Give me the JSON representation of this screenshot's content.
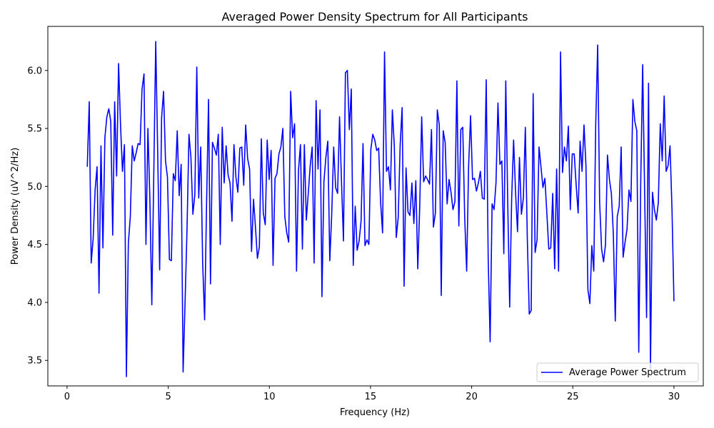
{
  "chart_data": {
    "type": "line",
    "title": "Averaged Power Density Spectrum for All Participants",
    "xlabel": "Frequency (Hz)",
    "ylabel": "Power Density (uV^2/Hz)",
    "xlim": [
      -0.95,
      31.45
    ],
    "ylim": [
      3.28,
      6.38
    ],
    "xticks": [
      0,
      5,
      10,
      15,
      20,
      25,
      30
    ],
    "yticks": [
      3.5,
      4.0,
      4.5,
      5.0,
      5.5,
      6.0
    ],
    "xtick_labels": [
      "0",
      "5",
      "10",
      "15",
      "20",
      "25",
      "30"
    ],
    "ytick_labels": [
      "3.5",
      "4.0",
      "4.5",
      "5.0",
      "5.5",
      "6.0"
    ],
    "grid": false,
    "legend_position": "lower-right",
    "series": [
      {
        "name": "Average Power Spectrum",
        "color": "#0000ff",
        "x_start": 1.0,
        "x_end": 30.0,
        "values": [
          5.17,
          5.73,
          4.34,
          4.55,
          4.97,
          5.17,
          4.08,
          5.35,
          4.47,
          5.42,
          5.6,
          5.67,
          5.56,
          4.58,
          5.73,
          5.09,
          6.06,
          5.53,
          5.13,
          5.36,
          3.36,
          4.51,
          4.74,
          5.35,
          5.22,
          5.29,
          5.37,
          5.36,
          5.84,
          5.97,
          4.5,
          5.5,
          4.9,
          3.98,
          5.1,
          6.25,
          5.3,
          4.28,
          5.59,
          5.82,
          5.22,
          5.08,
          4.37,
          4.36,
          5.11,
          5.05,
          5.48,
          4.92,
          5.19,
          3.4,
          4.0,
          4.63,
          5.45,
          5.25,
          4.76,
          4.93,
          6.03,
          4.9,
          5.34,
          4.34,
          3.85,
          4.85,
          5.75,
          4.16,
          5.38,
          5.33,
          5.27,
          5.45,
          4.5,
          5.51,
          5.03,
          5.35,
          5.1,
          5.03,
          4.7,
          5.36,
          5.08,
          4.95,
          5.33,
          5.34,
          5.01,
          5.53,
          5.24,
          5.15,
          4.44,
          4.89,
          4.65,
          4.38,
          4.48,
          5.41,
          4.77,
          4.67,
          5.4,
          5.06,
          5.31,
          4.32,
          5.07,
          5.11,
          5.28,
          5.34,
          5.5,
          4.74,
          4.6,
          4.52,
          5.82,
          5.42,
          5.54,
          4.27,
          5.14,
          5.36,
          4.46,
          5.36,
          4.71,
          4.94,
          5.18,
          5.34,
          4.34,
          5.74,
          5.15,
          5.66,
          4.05,
          5.04,
          5.25,
          5.39,
          4.36,
          4.76,
          5.34,
          4.99,
          4.94,
          5.6,
          5.04,
          4.53,
          5.98,
          6.0,
          5.49,
          5.84,
          4.32,
          4.83,
          4.45,
          4.53,
          4.7,
          5.37,
          4.49,
          4.54,
          4.5,
          5.32,
          5.45,
          5.4,
          5.31,
          5.33,
          4.86,
          4.6,
          6.16,
          5.13,
          5.17,
          4.97,
          5.66,
          5.35,
          4.56,
          4.73,
          5.36,
          5.68,
          4.14,
          5.16,
          4.78,
          4.75,
          5.03,
          4.68,
          5.05,
          4.29,
          4.83,
          5.6,
          5.04,
          5.09,
          5.06,
          5.02,
          5.49,
          4.65,
          4.77,
          5.66,
          5.53,
          4.06,
          5.48,
          5.38,
          4.85,
          5.06,
          4.95,
          4.8,
          4.87,
          5.91,
          4.66,
          5.49,
          5.51,
          4.73,
          4.27,
          5.18,
          5.61,
          5.06,
          5.07,
          4.96,
          5.03,
          5.13,
          4.9,
          4.89,
          5.92,
          4.39,
          3.66,
          4.85,
          4.8,
          5.03,
          5.72,
          5.19,
          5.22,
          4.42,
          5.91,
          4.86,
          3.96,
          4.89,
          5.4,
          4.95,
          4.61,
          5.25,
          4.76,
          4.9,
          5.51,
          4.56,
          3.9,
          3.93,
          5.8,
          4.43,
          4.54,
          5.34,
          5.17,
          4.99,
          5.07,
          4.77,
          4.46,
          4.47,
          4.94,
          4.29,
          5.15,
          4.27,
          6.16,
          5.12,
          5.34,
          5.22,
          5.52,
          4.8,
          5.28,
          5.28,
          5.01,
          4.77,
          5.39,
          5.13,
          5.53,
          5.18,
          4.11,
          3.99,
          4.49,
          4.27,
          5.54,
          6.22,
          4.86,
          4.46,
          4.35,
          4.5,
          5.27,
          5.06,
          4.94,
          4.59,
          3.84,
          4.74,
          4.83,
          5.34,
          4.39,
          4.52,
          4.63,
          4.97,
          4.87,
          5.75,
          5.56,
          5.48,
          3.57,
          5.03,
          6.05,
          4.96,
          3.87,
          5.89,
          3.43,
          4.95,
          4.8,
          4.71,
          4.86,
          5.54,
          5.22,
          5.78,
          5.13,
          5.18,
          5.35,
          4.8,
          4.01
        ]
      }
    ]
  }
}
